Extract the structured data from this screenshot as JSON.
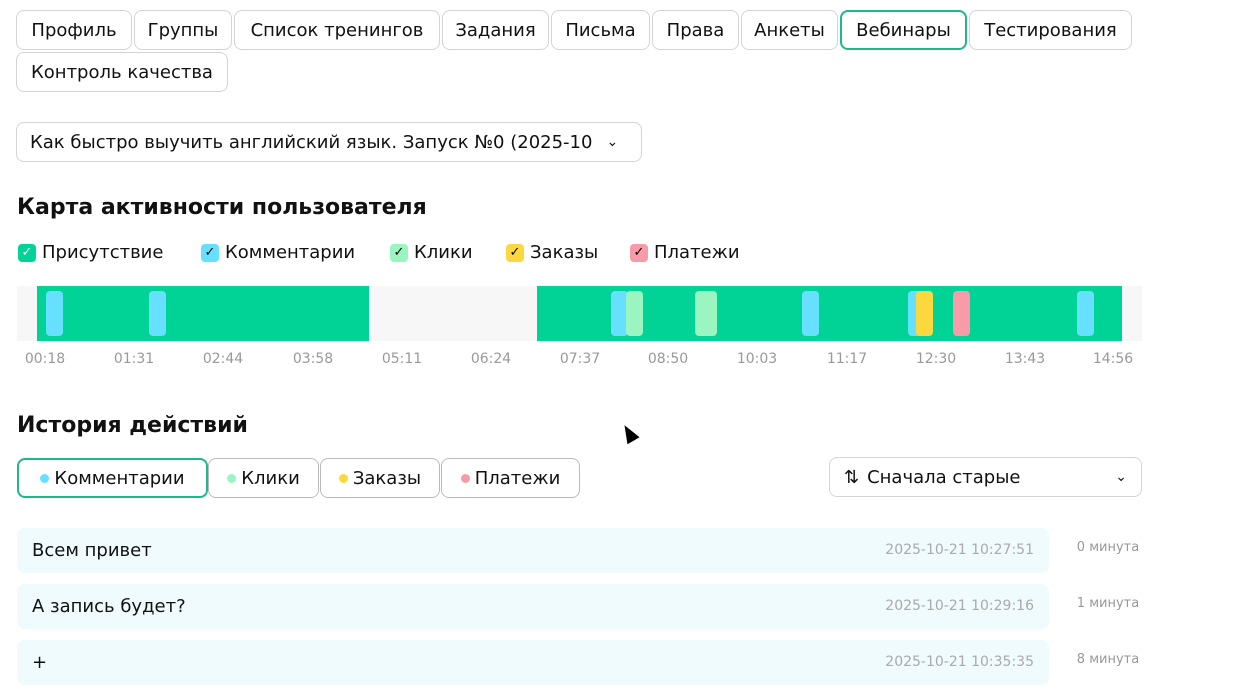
{
  "tabs": [
    "Профиль",
    "Группы",
    "Список тренингов",
    "Задания",
    "Письма",
    "Права",
    "Анкеты",
    "Вебинары",
    "Тестирования",
    "Контроль качества"
  ],
  "active_tab": "Вебинары",
  "webinar_select": "Как быстро выучить английский язык. Запуск №0 (2025-10",
  "activity_map": {
    "title": "Карта активности пользователя",
    "legend": [
      "Присутствие",
      "Комментарии",
      "Клики",
      "Заказы",
      "Платежи"
    ],
    "time_labels": [
      "00:18",
      "01:31",
      "02:44",
      "03:58",
      "05:11",
      "06:24",
      "07:37",
      "08:50",
      "10:03",
      "11:17",
      "12:30",
      "13:43",
      "14:56"
    ]
  },
  "history": {
    "title": "История действий",
    "filters": [
      "Комментарии",
      "Клики",
      "Заказы",
      "Платежи"
    ],
    "sort": "Сначала старые",
    "rows": [
      [
        "Всем привет",
        "2025-10-21 10:27:51",
        "0 минута"
      ],
      [
        "А запись будет?",
        "2025-10-21 10:29:16",
        "1 минута"
      ],
      [
        "+",
        "2025-10-21 10:35:35",
        "8 минута"
      ]
    ]
  }
}
